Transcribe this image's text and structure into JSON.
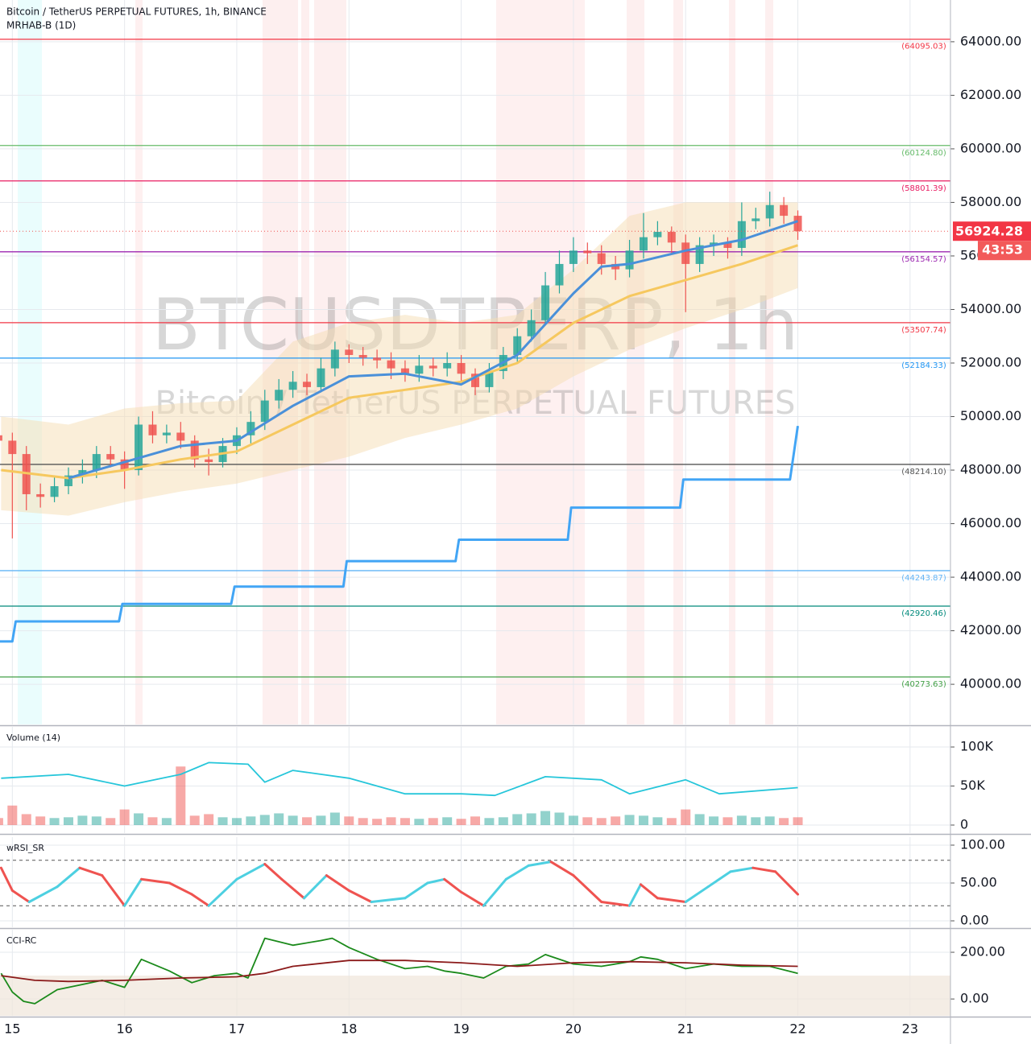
{
  "chart_data": [
    {
      "type": "candlestick",
      "title": "Bitcoin / TetherUS PERPETUAL FUTURES, 1h, BINANCE",
      "subtitle": "MRHAB-B (1D)",
      "watermark": "BTCUSDTPERP, 1h",
      "watermark_subtitle": "Bitcoin / TetherUS PERPETUAL FUTURES",
      "last_price": 56924.28,
      "countdown": "43:53",
      "xlim": [
        14.89,
        23.36
      ],
      "xticks": [
        15,
        16,
        17,
        18,
        19,
        20,
        21,
        22,
        23
      ],
      "ylim": [
        38500,
        65560
      ],
      "yticks": [
        {
          "value": 40000,
          "label": "40000.00"
        },
        {
          "value": 42000,
          "label": "42000.00"
        },
        {
          "value": 44000,
          "label": "44000.00"
        },
        {
          "value": 46000,
          "label": "46000.00"
        },
        {
          "value": 48000,
          "label": "48000.00"
        },
        {
          "value": 50000,
          "label": "50000.00"
        },
        {
          "value": 52000,
          "label": "52000.00"
        },
        {
          "value": 54000,
          "label": "54000.00"
        },
        {
          "value": 56000,
          "label": "56000.00"
        },
        {
          "value": 58000,
          "label": "58000.00"
        },
        {
          "value": 60000,
          "label": "60000.00"
        },
        {
          "value": 62000,
          "label": "62000.00"
        },
        {
          "value": 64000,
          "label": "64000.00"
        }
      ],
      "up_color": "#26a69a",
      "down_color": "#ef5350",
      "candles": {
        "x": [
          14.875,
          15,
          15.125,
          15.25,
          15.375,
          15.5,
          15.625,
          15.75,
          15.875,
          16,
          16.125,
          16.25,
          16.375,
          16.5,
          16.625,
          16.75,
          16.875,
          17,
          17.125,
          17.25,
          17.375,
          17.5,
          17.625,
          17.75,
          17.875,
          18,
          18.125,
          18.25,
          18.375,
          18.5,
          18.625,
          18.75,
          18.875,
          19,
          19.125,
          19.25,
          19.375,
          19.5,
          19.625,
          19.75,
          19.875,
          20,
          20.125,
          20.25,
          20.375,
          20.5,
          20.625,
          20.75,
          20.875,
          21,
          21.125,
          21.25,
          21.375,
          21.5,
          21.625,
          21.75,
          21.875,
          22
        ],
        "open": [
          49300,
          49100,
          48600,
          47100,
          47000,
          47400,
          47800,
          48000,
          48600,
          48400,
          48000,
          49700,
          49300,
          49400,
          49100,
          48400,
          48300,
          48900,
          49300,
          49800,
          50600,
          51000,
          51300,
          51100,
          51800,
          52500,
          52300,
          52200,
          52100,
          51800,
          51600,
          51900,
          51800,
          52000,
          51600,
          51100,
          51700,
          52300,
          53000,
          53600,
          54900,
          55700,
          56200,
          56100,
          55700,
          55500,
          56200,
          56700,
          56900,
          56500,
          55700,
          56400,
          56500,
          56300,
          57300,
          57400,
          57900,
          57500
        ],
        "high": [
          49700,
          49400,
          48900,
          47500,
          47800,
          48100,
          48400,
          48900,
          48900,
          48700,
          50000,
          50200,
          49700,
          49800,
          49300,
          48800,
          49200,
          49600,
          50200,
          51000,
          51400,
          51700,
          51600,
          52200,
          52800,
          52700,
          52600,
          52500,
          52400,
          52100,
          52300,
          52200,
          52400,
          52300,
          51800,
          52000,
          52600,
          53300,
          54000,
          55400,
          56200,
          56700,
          56500,
          56400,
          56000,
          56600,
          57600,
          57300,
          57100,
          56800,
          56700,
          56800,
          56700,
          58000,
          57800,
          58400,
          58200,
          57700
        ],
        "low": [
          48700,
          45450,
          46500,
          46600,
          46800,
          47100,
          47500,
          47700,
          48100,
          47300,
          47800,
          49000,
          49000,
          48800,
          48100,
          47800,
          48100,
          48600,
          49000,
          49500,
          50300,
          50700,
          50800,
          50900,
          51500,
          52000,
          51900,
          51800,
          51400,
          51300,
          51300,
          51500,
          51500,
          51300,
          50800,
          50900,
          51400,
          52000,
          52800,
          53400,
          54600,
          55400,
          55700,
          55300,
          55100,
          55200,
          55900,
          56400,
          56100,
          53900,
          55400,
          56000,
          55900,
          56000,
          57000,
          57100,
          57200,
          56600
        ],
        "close": [
          49100,
          48600,
          47100,
          47000,
          47400,
          47800,
          48000,
          48600,
          48400,
          48000,
          49700,
          49300,
          49400,
          49100,
          48400,
          48300,
          48900,
          49300,
          49800,
          50600,
          51000,
          51300,
          51100,
          51800,
          52500,
          52300,
          52200,
          52100,
          51800,
          51600,
          51900,
          51800,
          52000,
          51600,
          51100,
          51700,
          52300,
          53000,
          53600,
          54900,
          55700,
          56200,
          56100,
          55700,
          55500,
          56200,
          56700,
          56900,
          56500,
          55700,
          56400,
          56500,
          56300,
          57300,
          57400,
          57900,
          57500,
          56924.28
        ]
      },
      "levels": [
        {
          "value": 64095.03,
          "label": "(64095.03)",
          "color": "#f23645"
        },
        {
          "value": 60124.8,
          "label": "(60124.80)",
          "color": "#66bb6a"
        },
        {
          "value": 58801.39,
          "label": "(58801.39)",
          "color": "#e91e63"
        },
        {
          "value": 56154.57,
          "label": "(56154.57)",
          "color": "#9c27b0"
        },
        {
          "value": 53507.74,
          "label": "(53507.74)",
          "color": "#f23645"
        },
        {
          "value": 52184.33,
          "label": "(52184.33)",
          "color": "#2196f3"
        },
        {
          "value": 48214.1,
          "label": "(48214.10)",
          "color": "#555555"
        },
        {
          "value": 44243.87,
          "label": "(44243.87)",
          "color": "#64b5f6"
        },
        {
          "value": 42920.46,
          "label": "(42920.46)",
          "color": "#00897b"
        },
        {
          "value": 40273.63,
          "label": "(40273.63)",
          "color": "#43a047"
        }
      ],
      "envelope": {
        "color": "#f5deb3",
        "x": [
          14.9,
          15.5,
          16,
          16.5,
          17,
          17.5,
          18,
          18.5,
          19,
          19.5,
          20,
          20.5,
          21,
          21.5,
          22
        ],
        "upper": [
          50000,
          49700,
          50300,
          50500,
          50600,
          52800,
          53500,
          53800,
          53500,
          53800,
          55500,
          57500,
          58000,
          58000,
          58000
        ],
        "lower": [
          46500,
          46300,
          46800,
          47200,
          47500,
          48000,
          48500,
          49200,
          49700,
          50300,
          51500,
          52500,
          53300,
          54000,
          54800
        ]
      },
      "series": [
        {
          "color": "#42a5f5",
          "x": [
            14.88,
            15.0,
            15.03,
            15.95,
            15.98,
            16.95,
            16.98,
            17.95,
            17.98,
            18.95,
            18.98,
            19.95,
            19.98,
            20.95,
            20.98,
            21.93,
            22.0
          ],
          "values": [
            41600,
            41600,
            42350,
            42350,
            43000,
            43000,
            43650,
            43650,
            44600,
            44600,
            45400,
            45400,
            46600,
            46600,
            47650,
            47650,
            49650
          ]
        },
        {
          "color": "#f6c85f",
          "x": [
            14.9,
            15.5,
            16,
            16.5,
            17,
            17.5,
            18,
            18.5,
            19,
            19.5,
            20,
            20.5,
            21,
            21.5,
            22
          ],
          "values": [
            48000,
            47700,
            48000,
            48400,
            48700,
            49700,
            50700,
            51000,
            51300,
            52000,
            53500,
            54500,
            55100,
            55700,
            56400
          ]
        },
        {
          "color": "#4a90d9",
          "x": [
            15.5,
            16,
            16.5,
            17,
            17.5,
            18,
            18.5,
            19,
            19.5,
            20,
            20.25,
            20.5,
            21,
            21.5,
            22
          ],
          "values": [
            47700,
            48300,
            48900,
            49100,
            50400,
            51500,
            51600,
            51200,
            52300,
            54600,
            55600,
            55700,
            56200,
            56600,
            57300
          ]
        }
      ]
    },
    {
      "type": "bar",
      "title": "Volume (14)",
      "ylim": [
        -10300,
        125800
      ],
      "yticks": [
        0,
        {
          "value": 50000,
          "label": "50K"
        },
        {
          "value": 100000,
          "label": "100K"
        }
      ],
      "values": [
        9000,
        25000,
        14000,
        11000,
        9000,
        10000,
        12000,
        11000,
        9000,
        20000,
        15000,
        10000,
        9000,
        75000,
        12000,
        14000,
        10000,
        9000,
        11000,
        13000,
        15000,
        12000,
        10000,
        12000,
        16000,
        11000,
        9000,
        8000,
        10000,
        9000,
        8000,
        9000,
        10000,
        8000,
        11000,
        9000,
        10000,
        14000,
        15000,
        18000,
        16000,
        12000,
        10000,
        9000,
        11000,
        13000,
        12000,
        10000,
        9000,
        20000,
        14000,
        11000,
        10000,
        12000,
        10000,
        11000,
        9000,
        10000
      ],
      "series": [
        {
          "color": "#26c6da",
          "x": [
            14.9,
            15.5,
            16,
            16.5,
            16.75,
            17.1,
            17.25,
            17.5,
            18,
            18.5,
            19,
            19.3,
            19.75,
            20.25,
            20.5,
            21,
            21.3,
            22
          ],
          "values": [
            60000,
            65000,
            50000,
            65000,
            80000,
            78000,
            55000,
            70000,
            60000,
            40000,
            40000,
            38000,
            62000,
            58000,
            40000,
            58000,
            40000,
            48000
          ]
        }
      ]
    },
    {
      "type": "line",
      "title": "wRSI_SR",
      "ylim": [
        -8.5,
        110.6
      ],
      "yticks": [
        {
          "value": 0,
          "label": "0.00"
        },
        {
          "value": 50,
          "label": "50.00"
        },
        {
          "value": 100,
          "label": "100.00"
        }
      ],
      "dashed_levels": [
        20,
        80
      ],
      "series": [
        {
          "up_color": "#4dd0e1",
          "down_color": "#ef5350",
          "x": [
            14.9,
            15.0,
            15.15,
            15.4,
            15.6,
            15.8,
            16.0,
            16.15,
            16.4,
            16.6,
            16.75,
            17.0,
            17.25,
            17.4,
            17.6,
            17.8,
            18.0,
            18.2,
            18.5,
            18.7,
            18.85,
            19.0,
            19.2,
            19.4,
            19.6,
            19.8,
            20.0,
            20.25,
            20.5,
            20.6,
            20.75,
            21.0,
            21.2,
            21.4,
            21.6,
            21.8,
            22.0
          ],
          "values": [
            70,
            40,
            25,
            45,
            70,
            60,
            20,
            55,
            50,
            35,
            20,
            55,
            75,
            55,
            30,
            60,
            40,
            25,
            30,
            50,
            55,
            38,
            20,
            55,
            73,
            78,
            60,
            25,
            20,
            48,
            30,
            25,
            45,
            65,
            70,
            65,
            35
          ]
        }
      ]
    },
    {
      "type": "line",
      "title": "CCI-RC",
      "ylim": [
        -72,
        296.6
      ],
      "yticks": [
        {
          "value": 0,
          "label": "0.00"
        },
        {
          "value": 200,
          "label": "200.00"
        }
      ],
      "band": [
        -100,
        100
      ],
      "series": [
        {
          "color": "#1b8a1b",
          "x": [
            14.9,
            15.0,
            15.1,
            15.2,
            15.4,
            15.6,
            15.8,
            16.0,
            16.15,
            16.4,
            16.6,
            16.8,
            17.0,
            17.1,
            17.25,
            17.5,
            17.75,
            17.85,
            18.0,
            18.25,
            18.5,
            18.7,
            18.85,
            19.0,
            19.2,
            19.4,
            19.6,
            19.75,
            20.0,
            20.25,
            20.5,
            20.6,
            20.75,
            21.0,
            21.25,
            21.5,
            21.75,
            22.0
          ],
          "values": [
            110,
            30,
            -10,
            -20,
            40,
            60,
            80,
            50,
            170,
            120,
            70,
            100,
            110,
            90,
            260,
            230,
            250,
            260,
            220,
            170,
            130,
            140,
            120,
            110,
            90,
            140,
            150,
            190,
            150,
            140,
            160,
            180,
            170,
            130,
            150,
            140,
            140,
            110
          ]
        },
        {
          "color": "#8b1a1a",
          "x": [
            14.9,
            15.2,
            15.5,
            16,
            16.5,
            17,
            17.25,
            17.5,
            18,
            18.5,
            19,
            19.5,
            20,
            20.5,
            21,
            21.5,
            22
          ],
          "values": [
            100,
            80,
            75,
            80,
            90,
            95,
            110,
            140,
            165,
            165,
            155,
            140,
            155,
            160,
            155,
            145,
            140
          ]
        }
      ]
    }
  ]
}
